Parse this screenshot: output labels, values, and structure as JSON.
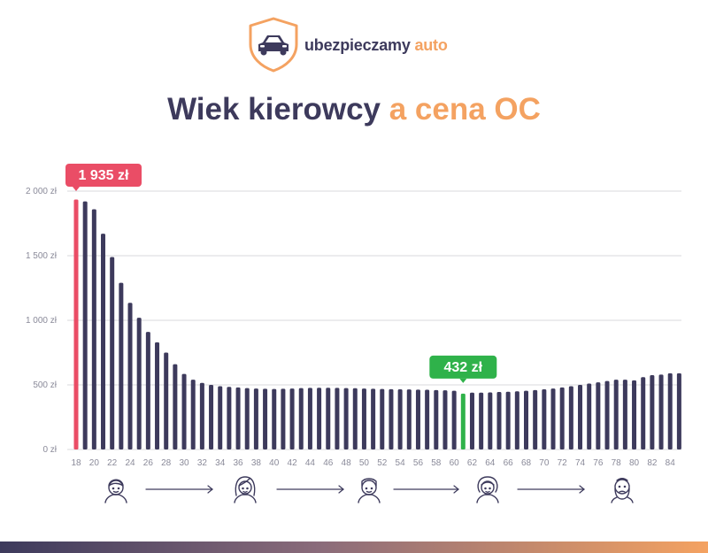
{
  "brand": {
    "name_main": "ubezpieczamy ",
    "name_accent": "auto",
    "icon": "car-shield-icon",
    "colors": {
      "dark": "#3d3a5c",
      "accent": "#f4a261"
    }
  },
  "title": {
    "part1": "Wiek kierowcy ",
    "part2": "a cena OC"
  },
  "colors": {
    "bar": "#3d3a5c",
    "max_bar": "#ea4d66",
    "min_bar": "#2fb24a",
    "grid": "#d9d9de",
    "axis_text": "#8a8a99",
    "bottom_bar_start": "#3d3a5c",
    "bottom_bar_end": "#f4a261"
  },
  "chart_data": {
    "type": "bar",
    "x_start_age": 18,
    "categories": [
      18,
      19,
      20,
      21,
      22,
      23,
      24,
      25,
      26,
      27,
      28,
      29,
      30,
      31,
      32,
      33,
      34,
      35,
      36,
      37,
      38,
      39,
      40,
      41,
      42,
      43,
      44,
      45,
      46,
      47,
      48,
      49,
      50,
      51,
      52,
      53,
      54,
      55,
      56,
      57,
      58,
      59,
      60,
      61,
      62,
      63,
      64,
      65,
      66,
      67,
      68,
      69,
      70,
      71,
      72,
      73,
      74,
      75,
      76,
      77,
      78,
      79,
      80,
      81,
      82,
      83,
      84,
      85
    ],
    "x_tick_labels": [
      "18",
      "20",
      "22",
      "24",
      "26",
      "28",
      "30",
      "32",
      "34",
      "36",
      "38",
      "40",
      "42",
      "44",
      "46",
      "48",
      "50",
      "52",
      "54",
      "56",
      "58",
      "60",
      "62",
      "64",
      "66",
      "68",
      "70",
      "72",
      "74",
      "76",
      "78",
      "80",
      "82",
      "84"
    ],
    "values": [
      1935,
      1920,
      1860,
      1670,
      1490,
      1290,
      1135,
      1020,
      910,
      830,
      750,
      660,
      585,
      540,
      515,
      500,
      490,
      485,
      480,
      475,
      472,
      470,
      468,
      470,
      472,
      475,
      477,
      478,
      478,
      477,
      475,
      474,
      472,
      470,
      468,
      467,
      466,
      465,
      463,
      462,
      460,
      458,
      455,
      432,
      440,
      440,
      442,
      445,
      447,
      450,
      455,
      460,
      466,
      472,
      480,
      490,
      500,
      510,
      520,
      530,
      540,
      540,
      535,
      560,
      575,
      580,
      590,
      590
    ],
    "ylim": [
      0,
      2000
    ],
    "y_ticks": [
      0,
      500,
      1000,
      1500,
      2000
    ],
    "y_tick_labels": [
      "0 zł",
      "500 zł",
      "1 000 zł",
      "1 500 zł",
      "2 000 zł"
    ],
    "grid": true,
    "annotations": [
      {
        "age": 18,
        "label": "1 935 zł",
        "kind": "max"
      },
      {
        "age": 61,
        "label": "432 zł",
        "kind": "min"
      }
    ],
    "xlabel": "",
    "ylabel": ""
  },
  "faces": {
    "icons": [
      "young-man-icon",
      "woman-icon",
      "man-icon",
      "older-woman-icon",
      "bearded-old-man-icon"
    ],
    "arrow_icon": "arrow-right-icon"
  }
}
